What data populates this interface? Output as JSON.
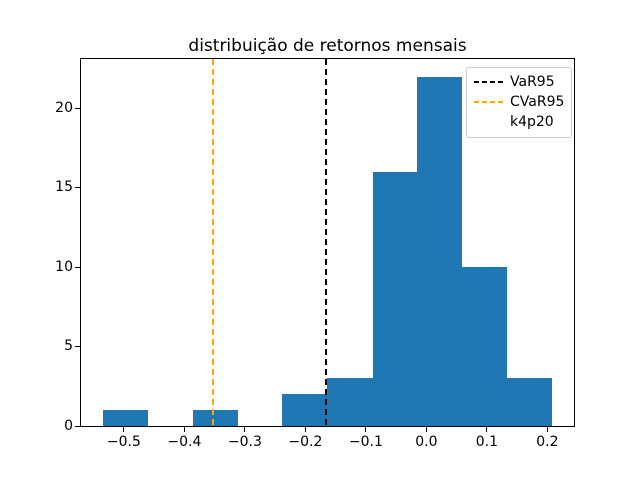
{
  "figure": {
    "background": "#ffffff"
  },
  "chart_data": {
    "type": "bar",
    "variant": "histogram",
    "title": "distribuição de retornos mensais",
    "xlabel": "",
    "ylabel": "",
    "bar_color": "#1f77b4",
    "bin_edges": [
      -0.534,
      -0.46,
      -0.386,
      -0.312,
      -0.238,
      -0.164,
      -0.089,
      -0.015,
      0.059,
      0.133,
      0.207
    ],
    "counts": [
      1,
      0,
      1,
      0,
      2,
      3,
      16,
      22,
      10,
      3
    ],
    "xlim": [
      -0.571,
      0.244
    ],
    "ylim": [
      0,
      23.1
    ],
    "x_tick_values": [
      -0.5,
      -0.4,
      -0.3,
      -0.2,
      -0.1,
      0.0,
      0.1,
      0.2
    ],
    "x_tick_labels": [
      "−0.5",
      "−0.4",
      "−0.3",
      "−0.2",
      "−0.1",
      "0.0",
      "0.1",
      "0.2"
    ],
    "y_tick_values": [
      0,
      5,
      10,
      15,
      20
    ],
    "y_tick_labels": [
      "0",
      "5",
      "10",
      "15",
      "20"
    ],
    "grid": false,
    "legend_position": "upper right",
    "vlines": [
      {
        "label": "VaR95",
        "x": -0.166,
        "color": "#000000",
        "linestyle": "dashed"
      },
      {
        "label": "CVaR95",
        "x": -0.353,
        "color": "#ffa500",
        "linestyle": "dashed"
      }
    ],
    "legend": [
      {
        "label": "VaR95",
        "color": "#000000",
        "handle": "dashed-line"
      },
      {
        "label": "CVaR95",
        "color": "#ffa500",
        "handle": "dashed-line"
      },
      {
        "label": "k4p20",
        "color": null,
        "handle": "none"
      }
    ]
  }
}
